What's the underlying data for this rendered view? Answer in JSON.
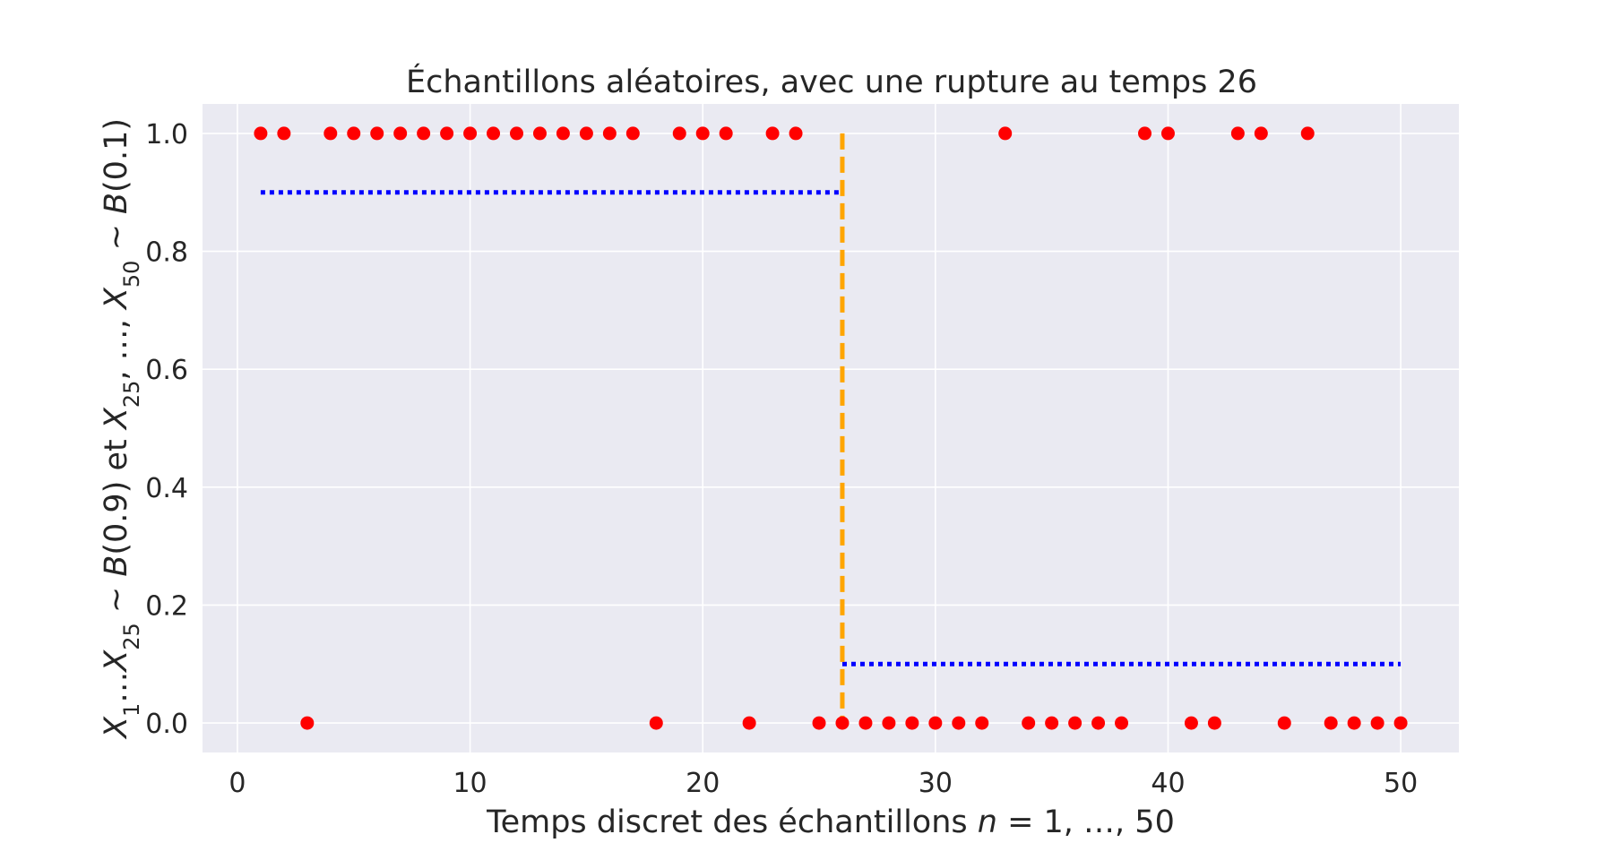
{
  "chart_data": {
    "type": "scatter",
    "title": "Échantillons aléatoires, avec une rupture au temps 26",
    "xlabel": "Temps discret des échantillons n = 1, …, 50",
    "ylabel": "X1…X25 ~ B(0.9) et X25, …, X50 ~ B(0.1)",
    "xlim": [
      -1.5,
      52.5
    ],
    "ylim": [
      -0.05,
      1.05
    ],
    "x_ticks": [
      0,
      10,
      20,
      30,
      40,
      50
    ],
    "y_ticks": [
      0.0,
      0.2,
      0.4,
      0.6,
      0.8,
      1.0
    ],
    "grid": true,
    "background": "#eaeaf2",
    "grid_color": "#ffffff",
    "samples": {
      "color": "#ff0000",
      "x": [
        1,
        2,
        3,
        4,
        5,
        6,
        7,
        8,
        9,
        10,
        11,
        12,
        13,
        14,
        15,
        16,
        17,
        18,
        19,
        20,
        21,
        22,
        23,
        24,
        25,
        26,
        27,
        28,
        29,
        30,
        31,
        32,
        33,
        34,
        35,
        36,
        37,
        38,
        39,
        40,
        41,
        42,
        43,
        44,
        45,
        46,
        47,
        48,
        49,
        50
      ],
      "y": [
        1,
        1,
        0,
        1,
        1,
        1,
        1,
        1,
        1,
        1,
        1,
        1,
        1,
        1,
        1,
        1,
        1,
        0,
        1,
        1,
        1,
        0,
        1,
        1,
        0,
        0,
        0,
        0,
        0,
        0,
        0,
        0,
        1,
        0,
        0,
        0,
        0,
        0,
        1,
        1,
        0,
        0,
        1,
        1,
        0,
        1,
        0,
        0,
        0,
        0
      ]
    },
    "mean_levels": {
      "color": "#0000ff",
      "segments": [
        {
          "x_start": 1,
          "x_end": 26,
          "y": 0.9
        },
        {
          "x_start": 26,
          "x_end": 50,
          "y": 0.1
        }
      ]
    },
    "change_point": {
      "color": "#ffa500",
      "x": 26,
      "y_start": 0.0,
      "y_end": 1.0
    }
  }
}
